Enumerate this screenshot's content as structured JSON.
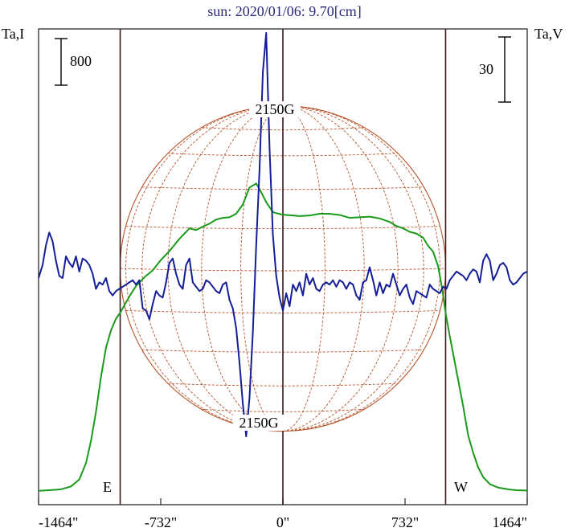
{
  "chart_data": {
    "type": "line",
    "title": "sun: 2020/01/06: 9.70[cm]",
    "left_axis_label": "Ta,I",
    "right_axis_label": "Ta,V",
    "left_scale_bar_label": "800",
    "right_scale_bar_label": "30",
    "x_ticks": [
      {
        "value": -1464,
        "label": "-1464\""
      },
      {
        "value": -732,
        "label": "-732\""
      },
      {
        "value": 0,
        "label": "0\""
      },
      {
        "value": 732,
        "label": "732\""
      },
      {
        "value": 1464,
        "label": "1464\""
      }
    ],
    "xlim": [
      -1464,
      1464
    ],
    "limb_markers": [
      {
        "value": -975,
        "label": "E"
      },
      {
        "value": 0,
        "label": ""
      },
      {
        "value": 975,
        "label": "W"
      }
    ],
    "disk": {
      "center_x": 0,
      "radius": 975,
      "north_label": "2150G",
      "south_label": "2150G",
      "color": "#b5532a"
    },
    "series": [
      {
        "axis": "left",
        "color": "#1a9a1a",
        "x": [
          -1464,
          -1400,
          -1330,
          -1270,
          -1220,
          -1180,
          -1150,
          -1120,
          -1090,
          -1060,
          -1030,
          -1000,
          -975,
          -950,
          -920,
          -880,
          -830,
          -780,
          -730,
          -680,
          -620,
          -560,
          -520,
          -480,
          -440,
          -400,
          -360,
          -320,
          -280,
          -240,
          -200,
          -160,
          -130,
          -100,
          -60,
          -40,
          -10,
          20,
          60,
          100,
          160,
          220,
          280,
          340,
          400,
          460,
          520,
          580,
          640,
          680,
          720,
          760,
          800,
          840,
          870,
          900,
          930,
          955,
          975,
          1000,
          1040,
          1080,
          1110,
          1140,
          1170,
          1200,
          1240,
          1290,
          1350,
          1400,
          1464
        ],
        "y": [
          45,
          55,
          70,
          120,
          240,
          520,
          900,
          1400,
          2000,
          2500,
          2800,
          3000,
          3100,
          3230,
          3380,
          3560,
          3710,
          3830,
          4010,
          4160,
          4370,
          4550,
          4520,
          4580,
          4630,
          4700,
          4730,
          4740,
          4800,
          4960,
          5250,
          5320,
          5170,
          5000,
          4830,
          4810,
          4790,
          4780,
          4770,
          4760,
          4770,
          4800,
          4800,
          4780,
          4730,
          4740,
          4750,
          4720,
          4660,
          4590,
          4550,
          4490,
          4460,
          4390,
          4250,
          4150,
          3900,
          3500,
          3100,
          2700,
          2100,
          1500,
          1000,
          700,
          450,
          280,
          160,
          100,
          70,
          55,
          50
        ]
      },
      {
        "axis": "right",
        "color": "#141e96",
        "x": [
          -1464,
          -1440,
          -1420,
          -1400,
          -1380,
          -1360,
          -1340,
          -1320,
          -1300,
          -1280,
          -1260,
          -1240,
          -1220,
          -1200,
          -1180,
          -1160,
          -1140,
          -1120,
          -1100,
          -1080,
          -1060,
          -1040,
          -1020,
          -1000,
          -980,
          -960,
          -940,
          -920,
          -900,
          -880,
          -860,
          -840,
          -820,
          -800,
          -780,
          -760,
          -740,
          -720,
          -700,
          -680,
          -660,
          -640,
          -620,
          -600,
          -580,
          -560,
          -540,
          -520,
          -500,
          -480,
          -460,
          -440,
          -420,
          -400,
          -380,
          -360,
          -340,
          -320,
          -300,
          -280,
          -260,
          -240,
          -220,
          -200,
          -180,
          -160,
          -140,
          -120,
          -100,
          -80,
          -60,
          -40,
          -20,
          0,
          20,
          40,
          60,
          80,
          100,
          120,
          140,
          160,
          180,
          200,
          220,
          240,
          260,
          280,
          300,
          320,
          340,
          360,
          380,
          400,
          420,
          440,
          460,
          480,
          500,
          520,
          540,
          560,
          580,
          600,
          620,
          640,
          660,
          680,
          700,
          720,
          740,
          760,
          780,
          800,
          820,
          840,
          860,
          880,
          900,
          920,
          940,
          960,
          980,
          1000,
          1020,
          1040,
          1060,
          1080,
          1100,
          1120,
          1140,
          1160,
          1180,
          1200,
          1220,
          1240,
          1260,
          1280,
          1300,
          1320,
          1340,
          1360,
          1380,
          1400,
          1420,
          1440,
          1464
        ],
        "y": [
          0,
          6,
          15,
          21,
          17,
          8,
          1,
          0,
          10,
          7,
          5,
          10,
          3,
          9,
          8,
          6,
          2,
          -5,
          -2,
          -3,
          0,
          -6,
          -8,
          -6,
          -5,
          -4,
          -3,
          -2,
          -1,
          -3,
          -1,
          -14,
          -15,
          -19,
          -12,
          -6,
          -8,
          -9,
          -2,
          7,
          9,
          2,
          -3,
          -5,
          6,
          9,
          -2,
          -4,
          -6,
          -5,
          -1,
          -2,
          -4,
          -6,
          -7,
          -3,
          -2,
          -10,
          -14,
          -23,
          -39,
          -58,
          -73,
          -55,
          -25,
          15,
          50,
          95,
          113,
          60,
          20,
          1,
          -9,
          -15,
          -7,
          -13,
          -3,
          -6,
          -2,
          -8,
          2,
          -3,
          0,
          -5,
          -6,
          -3,
          -2,
          -3,
          -1,
          -4,
          -1,
          -2,
          -5,
          -2,
          -3,
          -8,
          -10,
          -2,
          -1,
          5,
          -1,
          -8,
          -2,
          -7,
          -3,
          -4,
          2,
          -3,
          -8,
          -5,
          -3,
          -9,
          -12,
          -6,
          -7,
          -8,
          -9,
          -3,
          -5,
          -6,
          -7,
          -4,
          -5,
          -1,
          1,
          3,
          2,
          1,
          -1,
          2,
          4,
          3,
          -2,
          8,
          11,
          8,
          -1,
          2,
          6,
          7,
          5,
          -1,
          -3,
          -2,
          0,
          2,
          3
        ]
      }
    ]
  }
}
